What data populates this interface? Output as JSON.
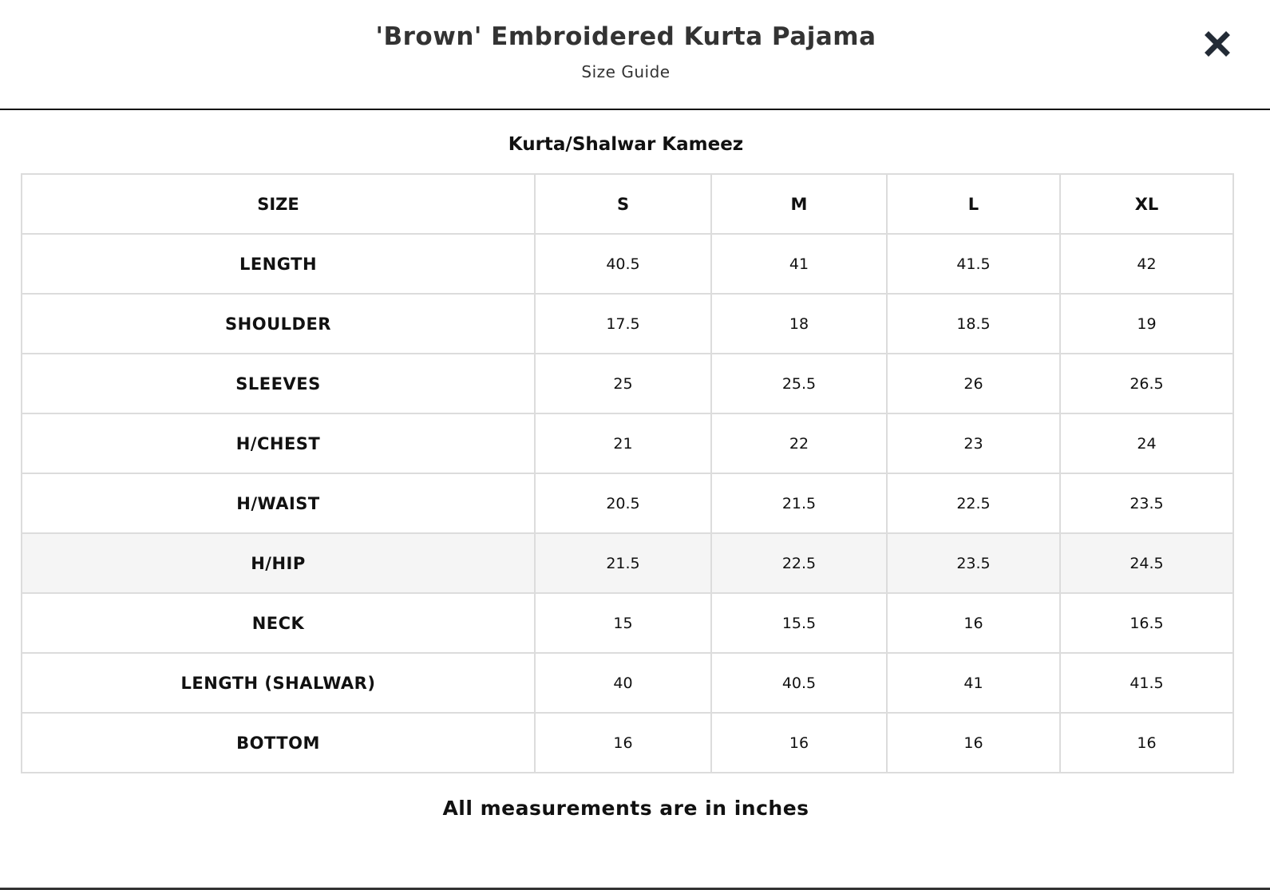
{
  "modal": {
    "title": "'Brown' Embroidered Kurta Pajama",
    "subtitle": "Size Guide",
    "close_icon": "close-x-icon"
  },
  "section": {
    "title": "Kurta/Shalwar Kameez",
    "header": [
      "SIZE",
      "S",
      "M",
      "L",
      "XL"
    ],
    "rows": [
      {
        "label": "LENGTH",
        "values": [
          "40.5",
          "41",
          "41.5",
          "42"
        ]
      },
      {
        "label": "SHOULDER",
        "values": [
          "17.5",
          "18",
          "18.5",
          "19"
        ]
      },
      {
        "label": "SLEEVES",
        "values": [
          "25",
          "25.5",
          "26",
          "26.5"
        ]
      },
      {
        "label": "H/CHEST",
        "values": [
          "21",
          "22",
          "23",
          "24"
        ]
      },
      {
        "label": "H/WAIST",
        "values": [
          "20.5",
          "21.5",
          "22.5",
          "23.5"
        ]
      },
      {
        "label": "H/HIP",
        "values": [
          "21.5",
          "22.5",
          "23.5",
          "24.5"
        ]
      },
      {
        "label": "NECK",
        "values": [
          "15",
          "15.5",
          "16",
          "16.5"
        ]
      },
      {
        "label": "LENGTH (SHALWAR)",
        "values": [
          "40",
          "40.5",
          "41",
          "41.5"
        ]
      },
      {
        "label": "BOTTOM",
        "values": [
          "16",
          "16",
          "16",
          "16"
        ]
      }
    ],
    "highlighted_row": "H/HIP",
    "footnote": "All measurements are in inches"
  }
}
